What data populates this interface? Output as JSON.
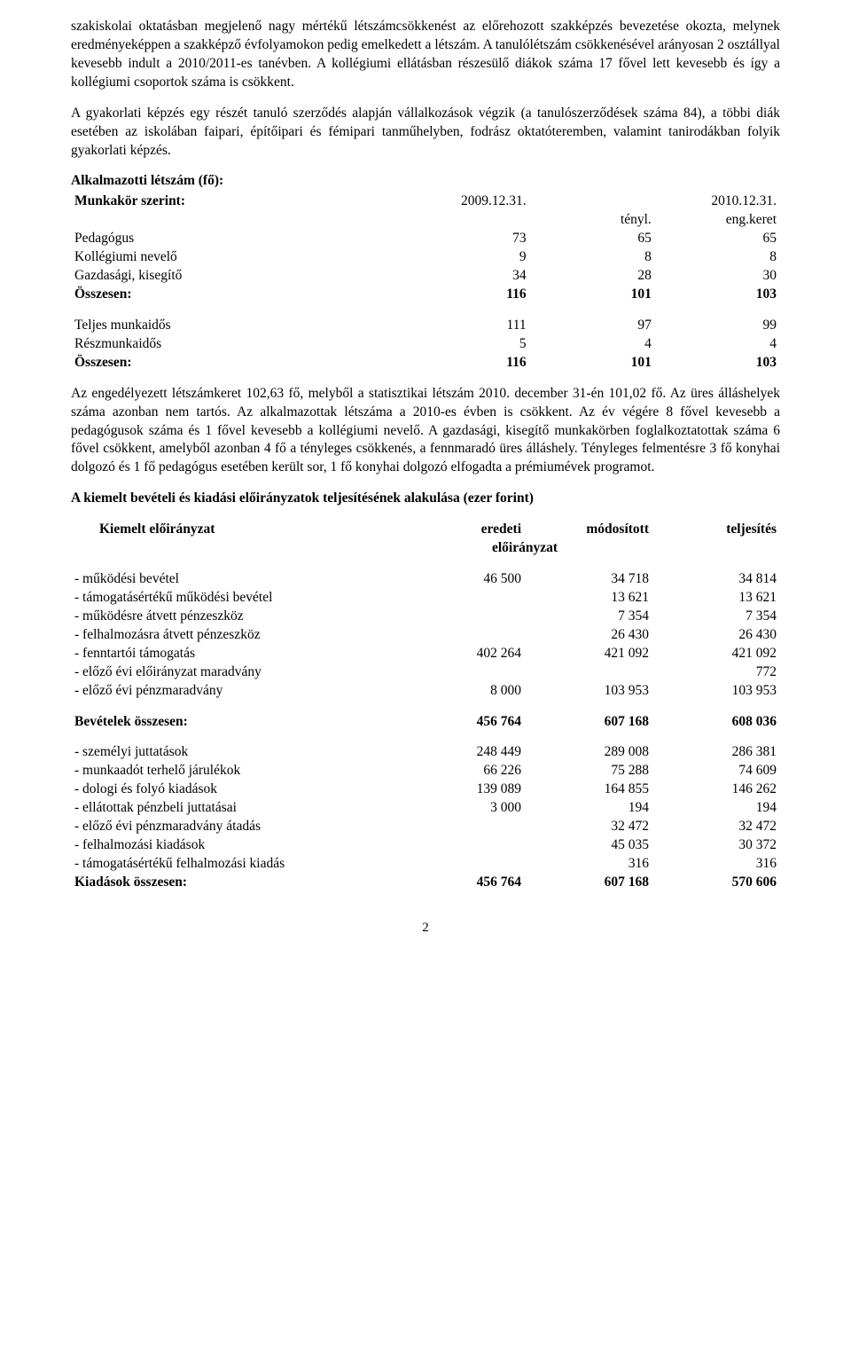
{
  "para1": "szakiskolai oktatásban megjelenő nagy mértékű létszámcsökkenést az előrehozott szakképzés bevezetése okozta, melynek eredményeképpen a szakképző évfolyamokon pedig emelkedett a létszám. A tanulólétszám csökkenésével arányosan 2 osztállyal kevesebb indult a 2010/2011-es tanévben. A kollégiumi ellátásban részesülő diákok száma 17 fővel lett kevesebb és így a kollégiumi csoportok száma is csökkent.",
  "para2": "A gyakorlati képzés egy részét tanuló szerződés alapján vállalkozások végzik (a tanulószerződések száma 84), a többi diák esetében az iskolában faipari, építőipari és fémipari tanműhelyben, fodrász oktatóteremben, valamint tanirodákban folyik gyakorlati képzés.",
  "staff": {
    "title": "Alkalmazotti létszám (fő):",
    "subtitle": "Munkakör szerint:",
    "date1": "2009.12.31.",
    "date2": "2010.12.31.",
    "col_tenyl": "tényl.",
    "col_engkeret": "eng.keret",
    "rows": [
      {
        "label": "Pedagógus",
        "v": [
          73,
          65,
          65
        ]
      },
      {
        "label": "Kollégiumi nevelő",
        "v": [
          9,
          8,
          8
        ]
      },
      {
        "label": "Gazdasági, kisegítő",
        "v": [
          34,
          28,
          30
        ]
      }
    ],
    "total_label": "Összesen:",
    "total": [
      116,
      101,
      103
    ],
    "rows2": [
      {
        "label": "Teljes munkaidős",
        "v": [
          111,
          97,
          99
        ]
      },
      {
        "label": "Részmunkaidős",
        "v": [
          5,
          4,
          4
        ]
      }
    ],
    "total2": [
      116,
      101,
      103
    ]
  },
  "para3": "Az engedélyezett létszámkeret 102,63 fő, melyből a statisztikai létszám 2010. december 31-én 101,02 fő. Az üres álláshelyek száma azonban nem tartós. Az alkalmazottak létszáma a 2010-es évben is csökkent. Az év végére 8 fővel kevesebb a pedagógusok száma és 1 fővel kevesebb a kollégiumi nevelő. A gazdasági, kisegítő munkakörben foglalkoztatottak száma 6 fővel csökkent, amelyből azonban 4 fő a tényleges csökkenés, a fennmaradó üres álláshely. Tényleges felmentésre 3 fő konyhai dolgozó és 1 fő pedagógus esetében került sor, 1 fő konyhai dolgozó elfogadta a prémiumévek programot.",
  "budget_title": "A kiemelt bevételi és kiadási előirányzatok teljesítésének alakulása (ezer forint)",
  "budget_header": {
    "c1": "Kiemelt előirányzat",
    "c2": "eredeti",
    "c3": "módosított",
    "c4": "teljesítés",
    "sub": "előirányzat"
  },
  "budget_income": [
    {
      "label": "- működési bevétel",
      "v": [
        "46 500",
        "34 718",
        "34 814"
      ]
    },
    {
      "label": "- támogatásértékű működési bevétel",
      "v": [
        "",
        "13 621",
        "13 621"
      ]
    },
    {
      "label": "- működésre átvett pénzeszköz",
      "v": [
        "",
        "7 354",
        "7 354"
      ]
    },
    {
      "label": "- felhalmozásra átvett pénzeszköz",
      "v": [
        "",
        "26 430",
        "26 430"
      ]
    },
    {
      "label": "- fenntartói támogatás",
      "v": [
        "402 264",
        "421 092",
        "421 092"
      ]
    },
    {
      "label": "- előző évi előirányzat maradvány",
      "v": [
        "",
        "",
        "772"
      ]
    },
    {
      "label": "- előző évi pénzmaradvány",
      "v": [
        "8 000",
        "103 953",
        "103 953"
      ]
    }
  ],
  "income_total_label": "Bevételek összesen:",
  "income_total": [
    "456 764",
    "607 168",
    "608 036"
  ],
  "budget_expense": [
    {
      "label": "- személyi juttatások",
      "v": [
        "248 449",
        "289 008",
        "286 381"
      ]
    },
    {
      "label": "- munkaadót terhelő járulékok",
      "v": [
        "66 226",
        "75 288",
        "74 609"
      ]
    },
    {
      "label": "- dologi és folyó kiadások",
      "v": [
        "139 089",
        "164 855",
        "146 262"
      ]
    },
    {
      "label": "- ellátottak pénzbeli juttatásai",
      "v": [
        "3 000",
        "194",
        "194"
      ]
    },
    {
      "label": "- előző évi pénzmaradvány átadás",
      "v": [
        "",
        "32 472",
        "32 472"
      ]
    },
    {
      "label": "- felhalmozási kiadások",
      "v": [
        "",
        "45 035",
        "30 372"
      ]
    },
    {
      "label": "- támogatásértékű felhalmozási kiadás",
      "v": [
        "",
        "316",
        "316"
      ]
    }
  ],
  "expense_total_label": "Kiadások összesen:",
  "expense_total": [
    "456 764",
    "607 168",
    "570 606"
  ],
  "page_number": "2"
}
